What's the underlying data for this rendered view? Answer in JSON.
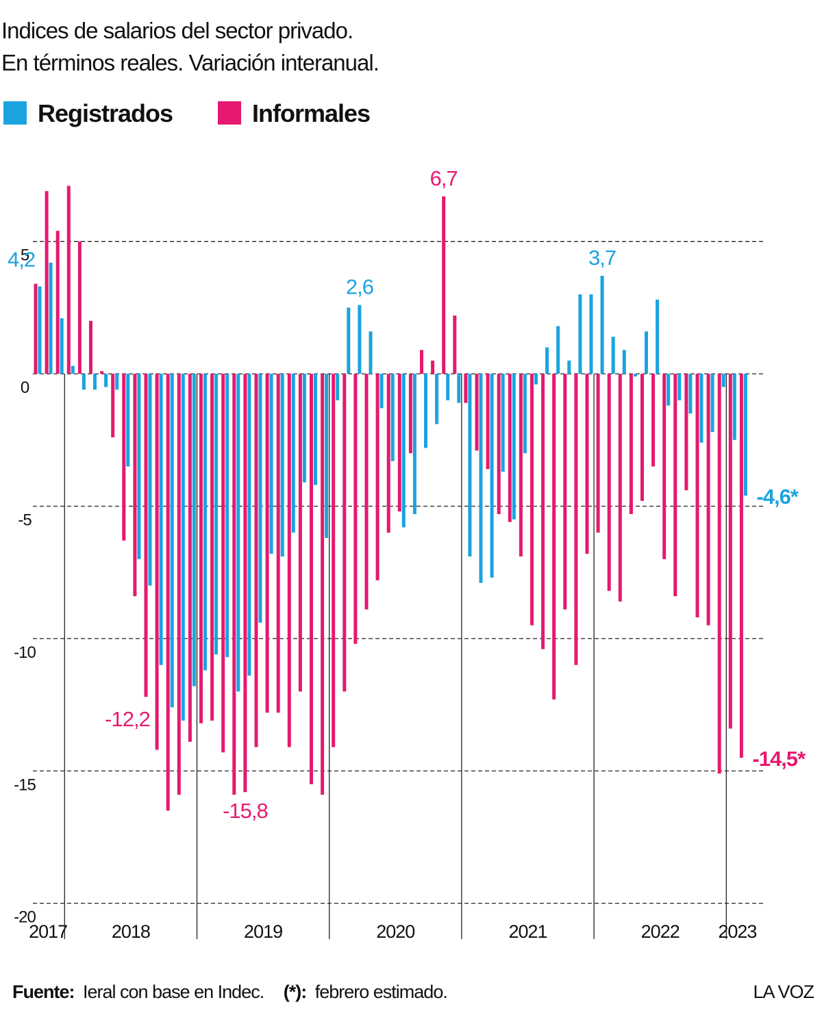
{
  "chart_data": {
    "type": "bar",
    "title": "Indices de salarios del sector privado.",
    "subtitle": "En términos reales. Variación interanual.",
    "groups": [
      {
        "label": "2017",
        "count": 3
      },
      {
        "label": "2018",
        "count": 12
      },
      {
        "label": "2019",
        "count": 12
      },
      {
        "label": "2020",
        "count": 12
      },
      {
        "label": "2021",
        "count": 12
      },
      {
        "label": "2022",
        "count": 12
      },
      {
        "label": "2023",
        "count": 2
      }
    ],
    "ylim": [
      -20.5,
      7.5
    ],
    "yticks": [
      5,
      0,
      -5,
      -10,
      -15,
      -20
    ],
    "grid": true,
    "series": [
      {
        "name": "Registrados",
        "color": "#1ba3e0",
        "values": [
          3.3,
          4.2,
          2.1,
          0.3,
          -0.6,
          -0.6,
          -0.5,
          -0.6,
          -3.5,
          -7.0,
          -8.0,
          -11.0,
          -12.6,
          -13.1,
          -11.8,
          -11.2,
          -10.6,
          -10.7,
          -12.0,
          -11.4,
          -9.4,
          -6.8,
          -6.9,
          -6.0,
          -4.1,
          -4.2,
          -6.2,
          -1.0,
          2.5,
          2.6,
          1.6,
          -1.3,
          -3.3,
          -5.8,
          -5.3,
          -2.8,
          -1.9,
          -1.0,
          -1.1,
          -6.9,
          -7.9,
          -7.7,
          -3.7,
          -5.5,
          -3.0,
          -0.4,
          1.0,
          1.8,
          0.5,
          3.0,
          3.0,
          3.7,
          1.4,
          0.9,
          -0.1,
          1.6,
          2.8,
          -1.2,
          -1.0,
          -1.5,
          -2.6,
          -2.2,
          -0.5,
          -2.5,
          -4.6
        ],
        "value_labels": [
          null,
          "4,2",
          null,
          null,
          null,
          null,
          null,
          null,
          null,
          null,
          null,
          null,
          null,
          null,
          null,
          null,
          null,
          null,
          null,
          null,
          null,
          null,
          null,
          null,
          null,
          null,
          null,
          null,
          null,
          "2,6",
          null,
          null,
          null,
          null,
          null,
          null,
          null,
          null,
          null,
          null,
          null,
          null,
          null,
          null,
          null,
          null,
          null,
          null,
          null,
          null,
          null,
          "3,7",
          null,
          null,
          null,
          null,
          null,
          null,
          null,
          null,
          null,
          null,
          null,
          null,
          "-4,6*"
        ]
      },
      {
        "name": "Informales",
        "color": "#e5196f",
        "values": [
          3.4,
          6.9,
          5.4,
          7.1,
          5.0,
          2.0,
          0.1,
          -2.4,
          -6.3,
          -8.4,
          -12.2,
          -14.2,
          -16.5,
          -15.9,
          -13.9,
          -13.2,
          -13.1,
          -14.3,
          -15.9,
          -15.8,
          -14.1,
          -12.8,
          -12.8,
          -14.1,
          -12.0,
          -15.5,
          -15.9,
          -14.1,
          -12.0,
          -10.2,
          -8.9,
          -7.8,
          -6.0,
          -5.2,
          -3.0,
          0.9,
          0.5,
          6.7,
          2.2,
          -1.1,
          -2.9,
          -3.6,
          -5.3,
          -5.6,
          -6.9,
          -9.5,
          -10.4,
          -12.3,
          -8.9,
          -11.0,
          -6.8,
          -6.0,
          -8.2,
          -8.6,
          -5.3,
          -4.8,
          -3.5,
          -7.0,
          -8.4,
          -4.4,
          -9.2,
          -9.5,
          -15.1,
          -13.4,
          -14.5
        ],
        "value_labels": [
          null,
          null,
          null,
          null,
          null,
          null,
          null,
          null,
          null,
          null,
          "-12,2",
          null,
          null,
          null,
          null,
          null,
          null,
          null,
          null,
          "-15,8",
          null,
          null,
          null,
          null,
          null,
          null,
          null,
          null,
          null,
          null,
          null,
          null,
          null,
          null,
          null,
          null,
          null,
          "6,7",
          null,
          null,
          null,
          null,
          null,
          null,
          null,
          null,
          null,
          null,
          null,
          null,
          null,
          null,
          null,
          null,
          null,
          null,
          null,
          null,
          null,
          null,
          null,
          null,
          null,
          null,
          "-14,5*"
        ]
      }
    ],
    "footer": {
      "source_label": "Fuente:",
      "source": "Ieral con base en Indec.",
      "note_label": "(*):",
      "note": "febrero estimado.",
      "brand": "LA VOZ"
    }
  }
}
